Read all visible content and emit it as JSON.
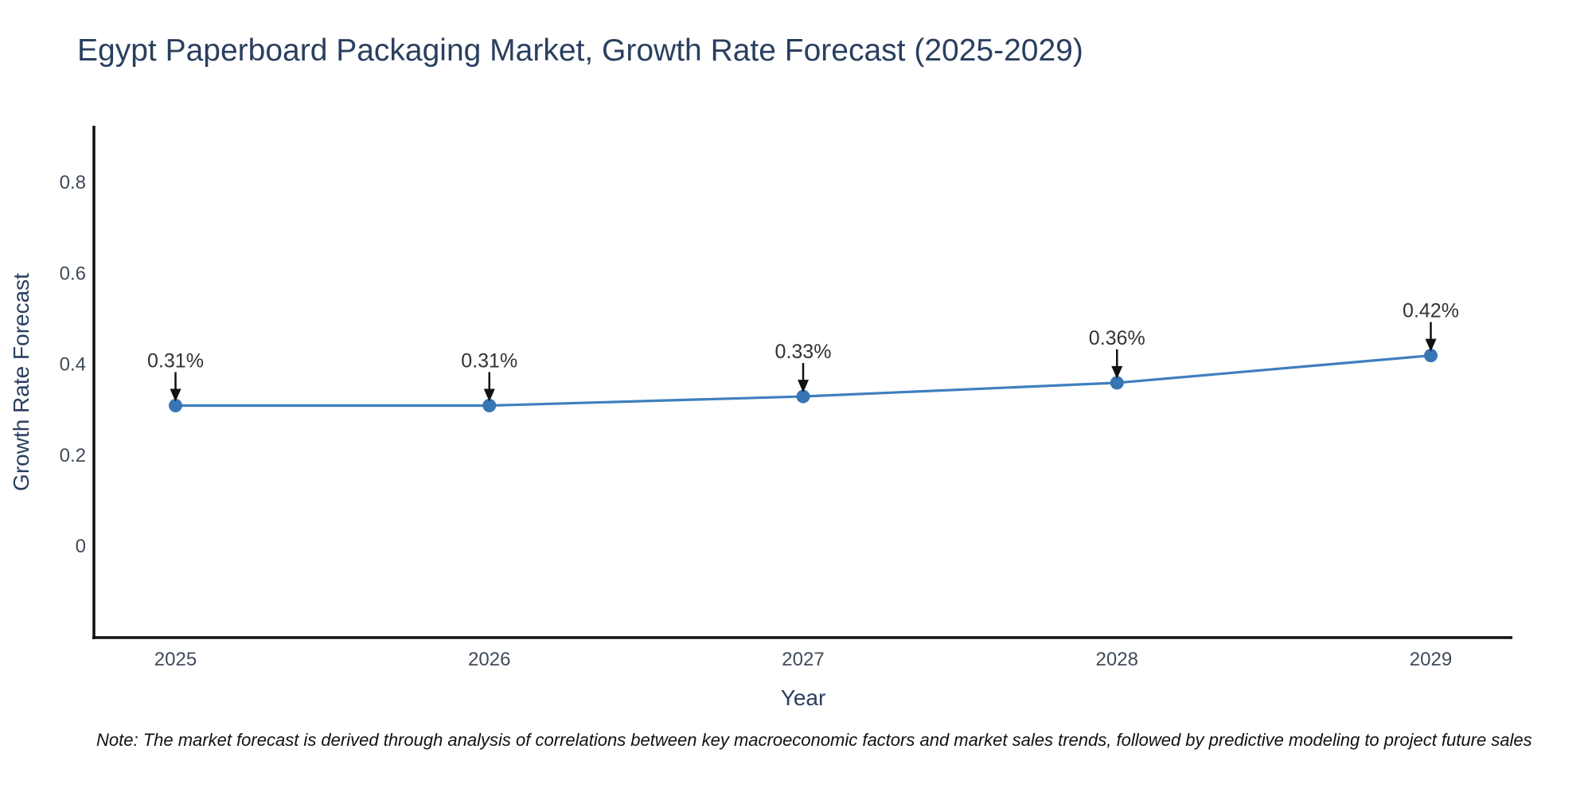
{
  "chart_data": {
    "type": "line",
    "title": "Egypt Paperboard Packaging Market, Growth Rate Forecast (2025-2029)",
    "xlabel": "Year",
    "ylabel": "Growth Rate Forecast",
    "x": [
      2025,
      2026,
      2027,
      2028,
      2029
    ],
    "values": [
      0.31,
      0.31,
      0.33,
      0.36,
      0.42
    ],
    "point_labels": [
      "0.31%",
      "0.31%",
      "0.33%",
      "0.36%",
      "0.42%"
    ],
    "xtick_labels": [
      "2025",
      "2026",
      "2027",
      "2028",
      "2029"
    ],
    "yticks": [
      0,
      0.2,
      0.4,
      0.6,
      0.8
    ],
    "ytick_labels": [
      "0",
      "0.2",
      "0.4",
      "0.6",
      "0.8"
    ],
    "xlim": [
      2024.74,
      2029.26
    ],
    "ylim": [
      -0.2,
      0.925
    ],
    "grid": false,
    "legend": "none",
    "line_color": "#3f7fbf",
    "marker_color": "#3676b3",
    "axis_color": "#111111",
    "tick_color": "#404b5a",
    "annotation_color": "#333333",
    "title_color": "#2a3f5f",
    "note": "Note: The market forecast is derived through analysis of correlations between key macroeconomic factors and market sales trends, followed by predictive modeling to project future sales"
  }
}
